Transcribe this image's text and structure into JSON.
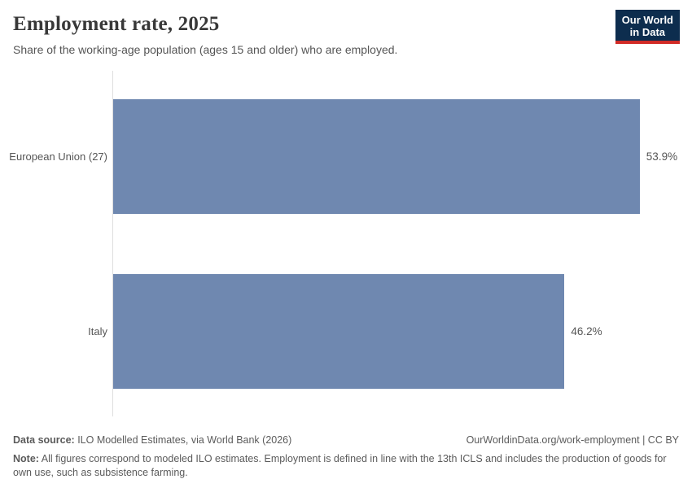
{
  "header": {
    "title": "Employment rate, 2025",
    "subtitle": "Share of the working-age population (ages 15 and older) who are employed.",
    "logo": {
      "line1": "Our World",
      "line2": "in Data"
    }
  },
  "chart_data": {
    "type": "bar",
    "orientation": "horizontal",
    "title": "Employment rate, 2025",
    "categories": [
      "European Union (27)",
      "Italy"
    ],
    "values": [
      53.9,
      46.2
    ],
    "value_labels": [
      "53.9%",
      "46.2%"
    ],
    "unit": "%",
    "xlabel": "",
    "ylabel": "",
    "xlim": [
      0,
      58
    ],
    "grid": false,
    "legend": "none",
    "bar_color": "#6f88b0",
    "axis_line_color": "#dedede"
  },
  "footer": {
    "datasource_label": "Data source:",
    "datasource_text": " ILO Modelled Estimates, via World Bank (2026)",
    "link_text": "OurWorldinData.org/work-employment | CC BY",
    "note_label": "Note:",
    "note_text": " All figures correspond to modeled ILO estimates. Employment is defined in line with the 13th ICLS and includes the production of goods for own use, such as subsistence farming."
  }
}
